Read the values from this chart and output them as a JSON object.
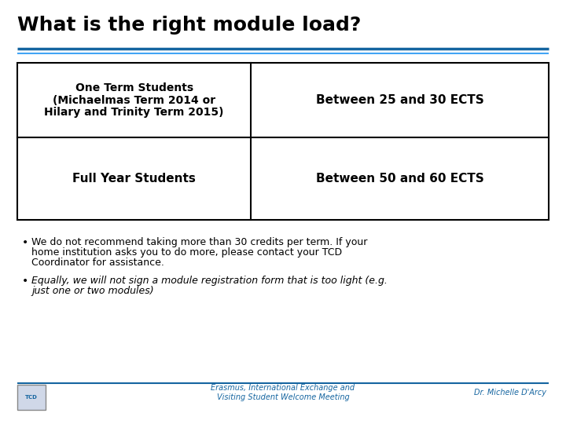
{
  "title": "What is the right module load?",
  "title_fontsize": 18,
  "title_color": "#000000",
  "line1_color": "#1565A0",
  "line2_color": "#42A5F5",
  "table": {
    "row1_col1_line1": "One Term Students",
    "row1_col1_line2": "(Michaelmas Term 2014 or",
    "row1_col1_line3": "Hilary and Trinity Term 2015)",
    "row1_col2": "Between 25 and 30 ECTS",
    "row2_col1": "Full Year Students",
    "row2_col2": "Between 50 and 60 ECTS",
    "border_color": "#000000",
    "text_color": "#000000",
    "cell_bg": "#FFFFFF"
  },
  "bullet1_line1": "We do not recommend taking more than 30 credits per term. If your",
  "bullet1_line2": "home institution asks you to do more, please contact your TCD",
  "bullet1_line3": "Coordinator for assistance.",
  "bullet2_line1": "Equally, we will not sign a module registration form that is too light (e.g.",
  "bullet2_line2": "just one or two modules)",
  "footer_center": "Erasmus, International Exchange and\nVisiting Student Welcome Meeting",
  "footer_right": "Dr. Michelle D'Arcy",
  "footer_color": "#1565A0",
  "footer_fontsize": 7,
  "bg_color": "#FFFFFF"
}
